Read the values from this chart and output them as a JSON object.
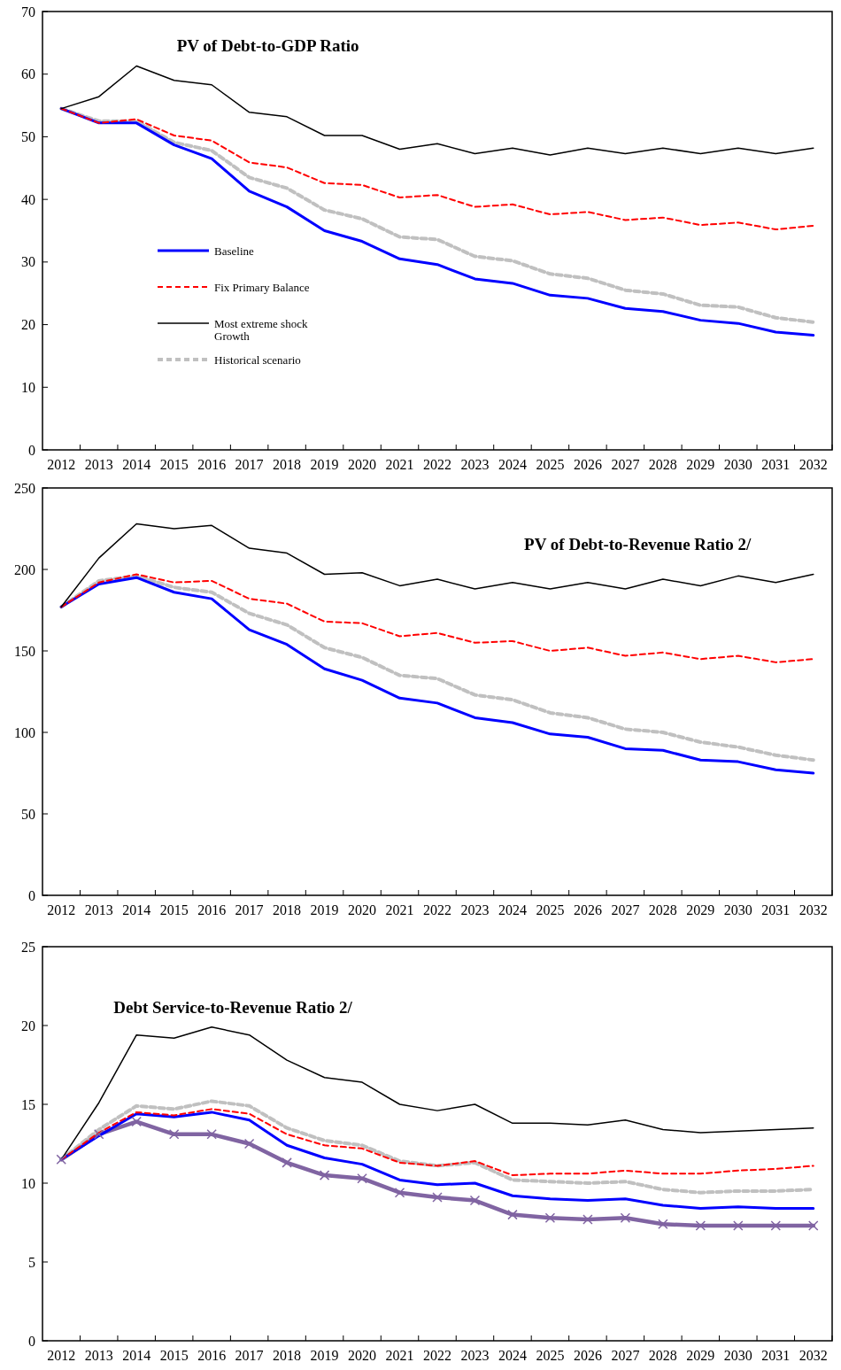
{
  "chart_data": [
    {
      "type": "line",
      "title": "PV of Debt-to-GDP  Ratio",
      "categories": [
        "2012",
        "2013",
        "2014",
        "2015",
        "2016",
        "2017",
        "2018",
        "2019",
        "2020",
        "2021",
        "2022",
        "2023",
        "2024",
        "2025",
        "2026",
        "2027",
        "2028",
        "2029",
        "2030",
        "2031",
        "2032"
      ],
      "ylim": [
        0,
        70
      ],
      "yticks": [
        0,
        10,
        20,
        30,
        40,
        50,
        60,
        70
      ],
      "grid": false,
      "legend": "left",
      "series": [
        {
          "name": "Baseline",
          "color": "#0000ff",
          "line_style": "solid",
          "values": [
            54.5,
            52.2,
            52.2,
            48.7,
            46.5,
            41.3,
            38.8,
            35,
            33.3,
            30.5,
            29.6,
            27.3,
            26.6,
            24.7,
            24.2,
            22.6,
            22.1,
            20.7,
            20.2,
            18.8,
            18.3
          ]
        },
        {
          "name": "Fix Primary Balance",
          "color": "#ff0000",
          "line_style": "dashed",
          "values": [
            54.5,
            52.2,
            52.8,
            50.2,
            49.4,
            45.9,
            45.1,
            42.6,
            42.3,
            40.3,
            40.7,
            38.8,
            39.2,
            37.6,
            38,
            36.7,
            37.1,
            35.9,
            36.3,
            35.2,
            35.8
          ]
        },
        {
          "name": "Most extreme shock Growth",
          "color": "#000000",
          "line_style": "solid",
          "values": [
            54.5,
            56.4,
            61.3,
            59,
            58.3,
            53.9,
            53.2,
            50.2,
            50.2,
            48,
            48.9,
            47.3,
            48.2,
            47.1,
            48.2,
            47.3,
            48.2,
            47.3,
            48.2,
            47.3,
            48.2
          ]
        },
        {
          "name": "Historical scenario",
          "color": "#c0c0c0",
          "line_style": "dashed",
          "values": [
            54.5,
            52.5,
            52.5,
            49.1,
            47.8,
            43.5,
            41.8,
            38.3,
            36.9,
            34,
            33.6,
            30.9,
            30.2,
            28.1,
            27.4,
            25.5,
            24.9,
            23.1,
            22.8,
            21.1,
            20.4
          ]
        }
      ]
    },
    {
      "type": "line",
      "title": "PV of Debt-to-Revenue  Ratio 2/",
      "categories": [
        "2012",
        "2013",
        "2014",
        "2015",
        "2016",
        "2017",
        "2018",
        "2019",
        "2020",
        "2021",
        "2022",
        "2023",
        "2024",
        "2025",
        "2026",
        "2027",
        "2028",
        "2029",
        "2030",
        "2031",
        "2032"
      ],
      "ylim": [
        0,
        250
      ],
      "yticks": [
        0,
        50,
        100,
        150,
        200,
        250
      ],
      "grid": false,
      "legend": false,
      "series": [
        {
          "color": "#0000ff",
          "line_style": "solid",
          "values": [
            177,
            191,
            195,
            186,
            182,
            163,
            154,
            139,
            132,
            121,
            118,
            109,
            106,
            99,
            97,
            90,
            89,
            83,
            82,
            77,
            75
          ]
        },
        {
          "color": "#ff0000",
          "line_style": "dashed",
          "values": [
            177,
            192,
            197,
            192,
            193,
            182,
            179,
            168,
            167,
            159,
            161,
            155,
            156,
            150,
            152,
            147,
            149,
            145,
            147,
            143,
            145
          ]
        },
        {
          "color": "#000000",
          "line_style": "solid",
          "values": [
            177,
            207,
            228,
            225,
            227,
            213,
            210,
            197,
            198,
            190,
            194,
            188,
            192,
            188,
            192,
            188,
            194,
            190,
            196,
            192,
            197
          ]
        },
        {
          "color": "#c0c0c0",
          "line_style": "dashed",
          "values": [
            177,
            193,
            196,
            189,
            186,
            173,
            166,
            152,
            146,
            135,
            133,
            123,
            120,
            112,
            109,
            102,
            100,
            94,
            91,
            86,
            83
          ]
        }
      ]
    },
    {
      "type": "line",
      "title": "Debt Service-to-Revenue Ratio 2/",
      "categories": [
        "2012",
        "2013",
        "2014",
        "2015",
        "2016",
        "2017",
        "2018",
        "2019",
        "2020",
        "2021",
        "2022",
        "2023",
        "2024",
        "2025",
        "2026",
        "2027",
        "2028",
        "2029",
        "2030",
        "2031",
        "2032"
      ],
      "ylim": [
        0,
        25
      ],
      "yticks": [
        0,
        5,
        10,
        15,
        20,
        25
      ],
      "grid": false,
      "legend": false,
      "series": [
        {
          "color": "#0000ff",
          "line_style": "solid",
          "values": [
            11.5,
            13,
            14.4,
            14.2,
            14.5,
            14,
            12.4,
            11.6,
            11.2,
            10.2,
            9.9,
            10,
            9.2,
            9,
            8.9,
            9,
            8.6,
            8.4,
            8.5,
            8.4,
            8.4
          ]
        },
        {
          "color": "#ff0000",
          "line_style": "dashed",
          "values": [
            11.5,
            13.2,
            14.5,
            14.3,
            14.7,
            14.4,
            13.1,
            12.4,
            12.2,
            11.3,
            11.1,
            11.4,
            10.5,
            10.6,
            10.6,
            10.8,
            10.6,
            10.6,
            10.8,
            10.9,
            11.1
          ]
        },
        {
          "color": "#000000",
          "line_style": "solid",
          "values": [
            11.5,
            15.1,
            19.4,
            19.2,
            19.9,
            19.4,
            17.8,
            16.7,
            16.4,
            15,
            14.6,
            15,
            13.8,
            13.8,
            13.7,
            14,
            13.4,
            13.2,
            13.3,
            13.4,
            13.5
          ]
        },
        {
          "color": "#c0c0c0",
          "line_style": "dashed",
          "values": [
            11.5,
            13.4,
            14.9,
            14.7,
            15.2,
            14.9,
            13.5,
            12.7,
            12.4,
            11.4,
            11.1,
            11.3,
            10.2,
            10.1,
            10,
            10.1,
            9.6,
            9.4,
            9.5,
            9.5,
            9.6
          ]
        },
        {
          "color": "#8064a2",
          "line_style": "solid",
          "marker": "cross",
          "values": [
            11.5,
            13.1,
            13.9,
            13.1,
            13.1,
            12.5,
            11.3,
            10.5,
            10.3,
            9.4,
            9.1,
            8.9,
            8,
            7.8,
            7.7,
            7.8,
            7.4,
            7.3,
            7.3,
            7.3,
            7.3
          ]
        }
      ]
    }
  ]
}
